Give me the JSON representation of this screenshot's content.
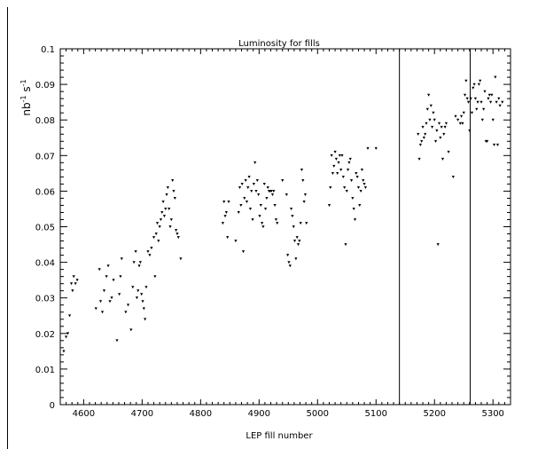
{
  "chart_data": {
    "type": "scatter",
    "title": "Luminosity for fills",
    "xlabel": "LEP fill number",
    "ylabel": {
      "main": "nb",
      "exp1": "-1",
      "mid": " s",
      "exp2": "-1"
    },
    "xlim": [
      4560,
      5330
    ],
    "ylim": [
      0,
      0.1
    ],
    "x_ticks": [
      4600,
      4700,
      4800,
      4900,
      5000,
      5100,
      5200,
      5300
    ],
    "x_tick_labels": [
      "4600",
      "4700",
      "4800",
      "4900",
      "5000",
      "5100",
      "5200",
      "5300"
    ],
    "y_ticks": [
      0,
      0.01,
      0.02,
      0.03,
      0.04,
      0.05,
      0.06,
      0.07,
      0.08,
      0.09,
      0.1
    ],
    "y_tick_labels": [
      "0",
      "0.01",
      "0.02",
      "0.03",
      "0.04",
      "0.05",
      "0.06",
      "0.07",
      "0.08",
      "0.09",
      "0.1"
    ],
    "vertical_lines": [
      5140,
      5261
    ],
    "marker": "down-triangle",
    "grid": false,
    "points": [
      [
        4566,
        0.015
      ],
      [
        4570,
        0.019
      ],
      [
        4573,
        0.02
      ],
      [
        4576,
        0.025
      ],
      [
        4579,
        0.034
      ],
      [
        4581,
        0.032
      ],
      [
        4583,
        0.036
      ],
      [
        4586,
        0.034
      ],
      [
        4589,
        0.035
      ],
      [
        4621,
        0.027
      ],
      [
        4627,
        0.038
      ],
      [
        4629,
        0.029
      ],
      [
        4632,
        0.026
      ],
      [
        4635,
        0.032
      ],
      [
        4639,
        0.036
      ],
      [
        4642,
        0.039
      ],
      [
        4645,
        0.029
      ],
      [
        4648,
        0.03
      ],
      [
        4651,
        0.035
      ],
      [
        4657,
        0.018
      ],
      [
        4661,
        0.031
      ],
      [
        4663,
        0.036
      ],
      [
        4665,
        0.041
      ],
      [
        4672,
        0.026
      ],
      [
        4676,
        0.028
      ],
      [
        4681,
        0.021
      ],
      [
        4684,
        0.033
      ],
      [
        4686,
        0.04
      ],
      [
        4689,
        0.043
      ],
      [
        4691,
        0.03
      ],
      [
        4693,
        0.032
      ],
      [
        4695,
        0.039
      ],
      [
        4697,
        0.04
      ],
      [
        4699,
        0.031
      ],
      [
        4701,
        0.029
      ],
      [
        4703,
        0.027
      ],
      [
        4705,
        0.024
      ],
      [
        4707,
        0.033
      ],
      [
        4710,
        0.043
      ],
      [
        4713,
        0.042
      ],
      [
        4716,
        0.044
      ],
      [
        4720,
        0.047
      ],
      [
        4722,
        0.036
      ],
      [
        4724,
        0.048
      ],
      [
        4726,
        0.051
      ],
      [
        4728,
        0.046
      ],
      [
        4730,
        0.05
      ],
      [
        4732,
        0.052
      ],
      [
        4734,
        0.054
      ],
      [
        4736,
        0.057
      ],
      [
        4738,
        0.053
      ],
      [
        4740,
        0.055
      ],
      [
        4742,
        0.059
      ],
      [
        4744,
        0.061
      ],
      [
        4746,
        0.055
      ],
      [
        4748,
        0.05
      ],
      [
        4750,
        0.052
      ],
      [
        4752,
        0.063
      ],
      [
        4754,
        0.06
      ],
      [
        4756,
        0.058
      ],
      [
        4758,
        0.049
      ],
      [
        4760,
        0.048
      ],
      [
        4762,
        0.047
      ],
      [
        4766,
        0.041
      ],
      [
        4838,
        0.051
      ],
      [
        4840,
        0.057
      ],
      [
        4842,
        0.053
      ],
      [
        4844,
        0.054
      ],
      [
        4846,
        0.047
      ],
      [
        4848,
        0.057
      ],
      [
        4860,
        0.046
      ],
      [
        4865,
        0.054
      ],
      [
        4867,
        0.061
      ],
      [
        4869,
        0.056
      ],
      [
        4871,
        0.062
      ],
      [
        4873,
        0.043
      ],
      [
        4875,
        0.058
      ],
      [
        4877,
        0.063
      ],
      [
        4879,
        0.057
      ],
      [
        4881,
        0.061
      ],
      [
        4883,
        0.064
      ],
      [
        4885,
        0.055
      ],
      [
        4887,
        0.06
      ],
      [
        4889,
        0.052
      ],
      [
        4891,
        0.062
      ],
      [
        4893,
        0.068
      ],
      [
        4895,
        0.06
      ],
      [
        4897,
        0.063
      ],
      [
        4899,
        0.059
      ],
      [
        4901,
        0.053
      ],
      [
        4903,
        0.056
      ],
      [
        4905,
        0.051
      ],
      [
        4907,
        0.05
      ],
      [
        4909,
        0.062
      ],
      [
        4911,
        0.055
      ],
      [
        4913,
        0.058
      ],
      [
        4915,
        0.061
      ],
      [
        4917,
        0.06
      ],
      [
        4919,
        0.06
      ],
      [
        4921,
        0.06
      ],
      [
        4923,
        0.059
      ],
      [
        4925,
        0.06
      ],
      [
        4927,
        0.056
      ],
      [
        4929,
        0.052
      ],
      [
        4931,
        0.051
      ],
      [
        4940,
        0.063
      ],
      [
        4947,
        0.059
      ],
      [
        4949,
        0.042
      ],
      [
        4951,
        0.04
      ],
      [
        4953,
        0.039
      ],
      [
        4955,
        0.055
      ],
      [
        4957,
        0.053
      ],
      [
        4959,
        0.05
      ],
      [
        4961,
        0.046
      ],
      [
        4963,
        0.041
      ],
      [
        4965,
        0.047
      ],
      [
        4967,
        0.045
      ],
      [
        4969,
        0.046
      ],
      [
        4971,
        0.051
      ],
      [
        4973,
        0.066
      ],
      [
        4975,
        0.063
      ],
      [
        4977,
        0.057
      ],
      [
        4979,
        0.059
      ],
      [
        4981,
        0.051
      ],
      [
        5020,
        0.056
      ],
      [
        5022,
        0.061
      ],
      [
        5024,
        0.07
      ],
      [
        5026,
        0.065
      ],
      [
        5028,
        0.067
      ],
      [
        5030,
        0.071
      ],
      [
        5032,
        0.069
      ],
      [
        5034,
        0.065
      ],
      [
        5036,
        0.068
      ],
      [
        5038,
        0.07
      ],
      [
        5040,
        0.066
      ],
      [
        5042,
        0.07
      ],
      [
        5044,
        0.064
      ],
      [
        5046,
        0.061
      ],
      [
        5048,
        0.045
      ],
      [
        5050,
        0.06
      ],
      [
        5052,
        0.066
      ],
      [
        5054,
        0.068
      ],
      [
        5056,
        0.069
      ],
      [
        5058,
        0.063
      ],
      [
        5060,
        0.058
      ],
      [
        5062,
        0.055
      ],
      [
        5064,
        0.052
      ],
      [
        5066,
        0.065
      ],
      [
        5068,
        0.064
      ],
      [
        5070,
        0.061
      ],
      [
        5072,
        0.056
      ],
      [
        5074,
        0.06
      ],
      [
        5076,
        0.066
      ],
      [
        5078,
        0.063
      ],
      [
        5080,
        0.062
      ],
      [
        5082,
        0.061
      ],
      [
        5086,
        0.072
      ],
      [
        5100,
        0.072
      ],
      [
        5172,
        0.076
      ],
      [
        5174,
        0.069
      ],
      [
        5176,
        0.073
      ],
      [
        5178,
        0.074
      ],
      [
        5180,
        0.078
      ],
      [
        5182,
        0.075
      ],
      [
        5184,
        0.076
      ],
      [
        5186,
        0.079
      ],
      [
        5188,
        0.083
      ],
      [
        5190,
        0.087
      ],
      [
        5192,
        0.08
      ],
      [
        5194,
        0.084
      ],
      [
        5196,
        0.078
      ],
      [
        5198,
        0.082
      ],
      [
        5200,
        0.08
      ],
      [
        5202,
        0.074
      ],
      [
        5204,
        0.077
      ],
      [
        5206,
        0.045
      ],
      [
        5208,
        0.079
      ],
      [
        5210,
        0.075
      ],
      [
        5212,
        0.078
      ],
      [
        5214,
        0.069
      ],
      [
        5216,
        0.076
      ],
      [
        5218,
        0.078
      ],
      [
        5220,
        0.079
      ],
      [
        5224,
        0.071
      ],
      [
        5232,
        0.064
      ],
      [
        5236,
        0.081
      ],
      [
        5240,
        0.08
      ],
      [
        5244,
        0.079
      ],
      [
        5246,
        0.081
      ],
      [
        5248,
        0.079
      ],
      [
        5250,
        0.082
      ],
      [
        5252,
        0.087
      ],
      [
        5254,
        0.091
      ],
      [
        5256,
        0.086
      ],
      [
        5258,
        0.085
      ],
      [
        5260,
        0.077
      ],
      [
        5262,
        0.086
      ],
      [
        5264,
        0.082
      ],
      [
        5266,
        0.089
      ],
      [
        5268,
        0.09
      ],
      [
        5270,
        0.086
      ],
      [
        5272,
        0.083
      ],
      [
        5274,
        0.085
      ],
      [
        5276,
        0.09
      ],
      [
        5278,
        0.091
      ],
      [
        5280,
        0.085
      ],
      [
        5282,
        0.08
      ],
      [
        5284,
        0.083
      ],
      [
        5286,
        0.088
      ],
      [
        5288,
        0.074
      ],
      [
        5290,
        0.074
      ],
      [
        5292,
        0.086
      ],
      [
        5294,
        0.087
      ],
      [
        5296,
        0.085
      ],
      [
        5298,
        0.087
      ],
      [
        5300,
        0.08
      ],
      [
        5302,
        0.073
      ],
      [
        5304,
        0.092
      ],
      [
        5306,
        0.085
      ],
      [
        5308,
        0.073
      ],
      [
        5310,
        0.086
      ],
      [
        5312,
        0.084
      ],
      [
        5316,
        0.085
      ]
    ]
  }
}
